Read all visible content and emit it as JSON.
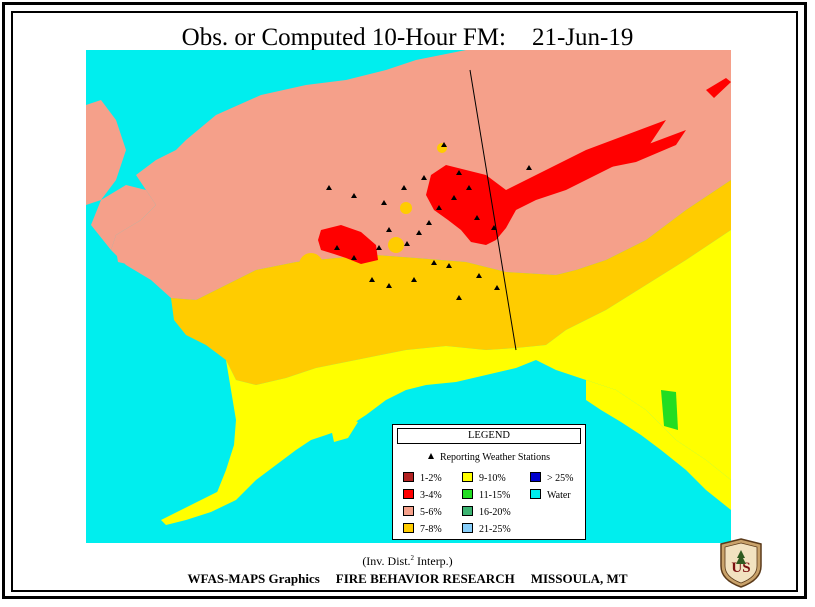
{
  "title": {
    "text": "Obs. or Computed 10-Hour FM:",
    "date": "21-Jun-19"
  },
  "legend": {
    "title": "LEGEND",
    "stations_label": "Reporting Weather Stations",
    "items": [
      {
        "label": "1-2%",
        "color": "#b22222"
      },
      {
        "label": "3-4%",
        "color": "#ff0000"
      },
      {
        "label": "5-6%",
        "color": "#f5a08a"
      },
      {
        "label": "7-8%",
        "color": "#ffcc00"
      },
      {
        "label": "9-10%",
        "color": "#ffff00"
      },
      {
        "label": "11-15%",
        "color": "#22dd22"
      },
      {
        "label": "16-20%",
        "color": "#3cb371"
      },
      {
        "label": "21-25%",
        "color": "#87cefa"
      },
      {
        "label": "> 25%",
        "color": "#0000cc"
      },
      {
        "label": "Water",
        "color": "#00eeee"
      }
    ]
  },
  "interp_note": {
    "pre": "(Inv. Dist.",
    "sup": "2",
    "post": " Interp.)"
  },
  "footer": {
    "left": "WFAS-MAPS Graphics",
    "center": "FIRE BEHAVIOR RESEARCH",
    "right": "MISSOULA, MT"
  },
  "logo_text": "US"
}
